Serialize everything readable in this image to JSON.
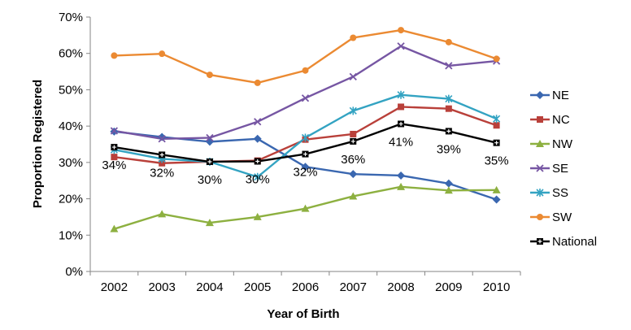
{
  "chart_data": {
    "type": "line",
    "title": "",
    "xlabel": "Year of Birth",
    "ylabel": "Proportion Registered",
    "x": [
      "2002",
      "2003",
      "2004",
      "2005",
      "2006",
      "2007",
      "2008",
      "2009",
      "2010"
    ],
    "ylim": [
      0,
      70
    ],
    "yticks": [
      "0%",
      "10%",
      "20%",
      "30%",
      "40%",
      "50%",
      "60%",
      "70%"
    ],
    "grid": false,
    "legend_position": "right",
    "series": [
      {
        "name": "NE",
        "color": "#3A67B0",
        "marker": "diamond",
        "values": [
          38.5,
          37.0,
          35.7,
          36.5,
          28.8,
          26.8,
          26.4,
          24.2,
          19.8
        ]
      },
      {
        "name": "NC",
        "color": "#B9403A",
        "marker": "square",
        "values": [
          31.5,
          29.8,
          30.2,
          30.5,
          36.3,
          37.8,
          45.3,
          44.8,
          40.2
        ]
      },
      {
        "name": "NW",
        "color": "#8DB040",
        "marker": "triangle",
        "values": [
          11.7,
          15.8,
          13.4,
          15.0,
          17.3,
          20.7,
          23.3,
          22.3,
          22.4
        ]
      },
      {
        "name": "SE",
        "color": "#7656A3",
        "marker": "x",
        "values": [
          38.7,
          36.5,
          36.8,
          41.2,
          47.7,
          53.6,
          62.0,
          56.6,
          57.9
        ]
      },
      {
        "name": "SS",
        "color": "#33A3C2",
        "marker": "star",
        "values": [
          33.5,
          31.0,
          30.2,
          26.0,
          36.8,
          44.2,
          48.6,
          47.5,
          42.0
        ]
      },
      {
        "name": "SW",
        "color": "#EB8A32",
        "marker": "circle",
        "values": [
          59.4,
          59.9,
          54.1,
          51.9,
          55.3,
          64.3,
          66.4,
          63.1,
          58.5
        ]
      },
      {
        "name": "National",
        "color": "#000000",
        "marker": "square-plus",
        "values": [
          34.2,
          32.1,
          30.2,
          30.3,
          32.3,
          35.8,
          40.6,
          38.6,
          35.4
        ]
      }
    ],
    "data_labels": {
      "series": "National",
      "labels": [
        "34%",
        "32%",
        "30%",
        "30%",
        "32%",
        "36%",
        "41%",
        "39%",
        "35%"
      ]
    }
  }
}
